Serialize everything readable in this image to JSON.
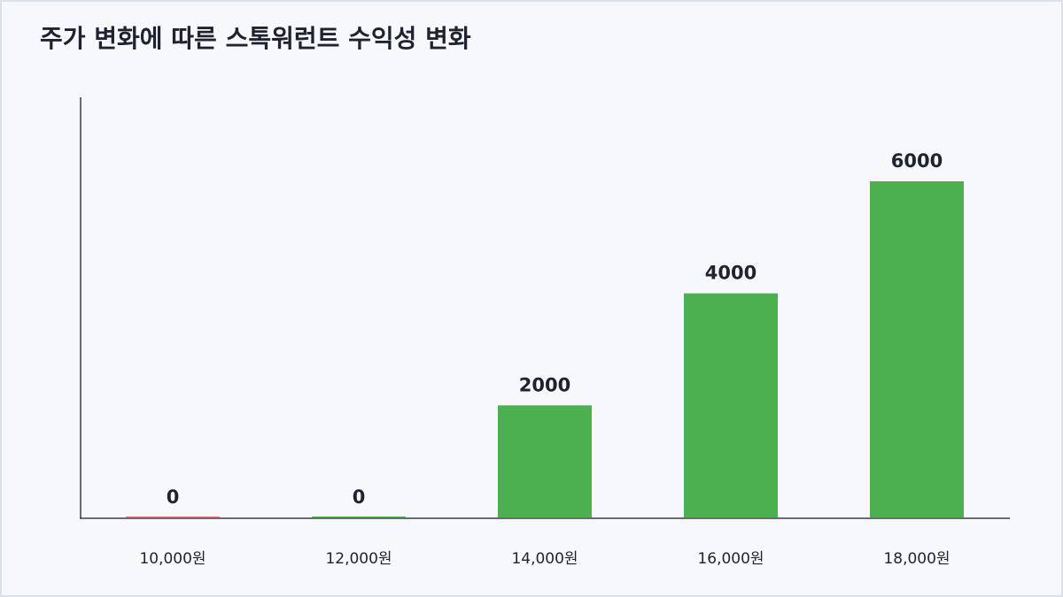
{
  "chart_data": {
    "type": "bar",
    "title": "주가 변화에 따른 스톡워런트 수익성 변화",
    "categories": [
      "10,000원",
      "12,000원",
      "14,000원",
      "16,000원",
      "18,000원"
    ],
    "values": [
      0,
      0,
      2000,
      4000,
      6000
    ],
    "colors": [
      "#e57373",
      "#4caf50",
      "#4caf50",
      "#4caf50",
      "#4caf50"
    ],
    "ylim": [
      0,
      7500
    ]
  }
}
